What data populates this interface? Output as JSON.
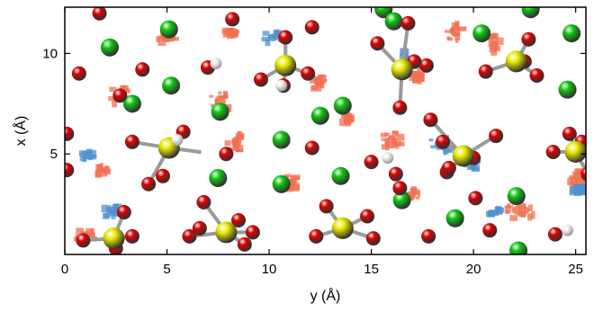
{
  "chart_data": {
    "type": "scatter",
    "title": "",
    "xlabel": "y (Å)",
    "ylabel": "x (Å)",
    "xlim": [
      0,
      25.5
    ],
    "ylim": [
      0,
      12.3
    ],
    "x_ticks": [
      0,
      5,
      10,
      15,
      20,
      25
    ],
    "y_ticks": [
      5,
      10
    ],
    "grid": false,
    "legend": "none",
    "colors": {
      "oxygen": "#e00000",
      "sulfur": "#e8e800",
      "chlorine": "#10c810",
      "hydrogen": "#f0f0f0",
      "positive_density": "#f07050",
      "negative_density": "#5090d0",
      "bond": "#9a9a9a"
    },
    "series": [
      {
        "name": "Cl",
        "color": "#10c810",
        "points": [
          [
            2.2,
            10.3
          ],
          [
            5.1,
            11.2
          ],
          [
            5.2,
            8.4
          ],
          [
            7.6,
            7.1
          ],
          [
            3.3,
            7.5
          ],
          [
            7.5,
            3.8
          ],
          [
            10.6,
            3.5
          ],
          [
            10.6,
            5.7
          ],
          [
            12.5,
            6.9
          ],
          [
            13.6,
            7.4
          ],
          [
            13.5,
            3.9
          ],
          [
            15.6,
            12.2
          ],
          [
            16.1,
            11.6
          ],
          [
            16.5,
            2.7
          ],
          [
            19.1,
            1.8
          ],
          [
            20.4,
            11.0
          ],
          [
            22.1,
            2.9
          ],
          [
            22.2,
            0.2
          ],
          [
            22.8,
            12.2
          ],
          [
            24.8,
            11.0
          ],
          [
            24.6,
            8.2
          ]
        ]
      },
      {
        "name": "O",
        "color": "#e00000",
        "points": [
          [
            0.7,
            9.0
          ],
          [
            3.8,
            9.2
          ],
          [
            0.1,
            6.0
          ],
          [
            2.7,
            7.9
          ],
          [
            0.1,
            4.2
          ],
          [
            4.8,
            3.9
          ],
          [
            1.7,
            12.0
          ],
          [
            8.2,
            11.7
          ],
          [
            7.0,
            9.3
          ],
          [
            12.1,
            11.3
          ],
          [
            10.8,
            10.8
          ],
          [
            9.6,
            8.7
          ],
          [
            11.9,
            9.0
          ],
          [
            10.7,
            8.4
          ],
          [
            7.9,
            5.0
          ],
          [
            12.1,
            5.3
          ],
          [
            15.0,
            4.6
          ],
          [
            16.4,
            3.3
          ],
          [
            16.2,
            4.0
          ],
          [
            20.1,
            2.8
          ],
          [
            3.3,
            5.6
          ],
          [
            4.1,
            3.5
          ],
          [
            5.8,
            6.1
          ],
          [
            6.6,
            1.3
          ],
          [
            6.1,
            0.9
          ],
          [
            6.8,
            2.6
          ],
          [
            9.2,
            1.1
          ],
          [
            8.5,
            1.7
          ],
          [
            8.8,
            0.5
          ],
          [
            12.8,
            2.4
          ],
          [
            14.8,
            1.9
          ],
          [
            12.3,
            0.9
          ],
          [
            15.1,
            0.8
          ],
          [
            15.3,
            10.5
          ],
          [
            16.8,
            11.5
          ],
          [
            16.4,
            7.3
          ],
          [
            17.7,
            9.4
          ],
          [
            17.1,
            9.6
          ],
          [
            17.9,
            6.7
          ],
          [
            18.5,
            5.6
          ],
          [
            18.7,
            4.1
          ],
          [
            20.0,
            4.8
          ],
          [
            21.1,
            5.9
          ],
          [
            20.6,
            9.1
          ],
          [
            22.7,
            10.7
          ],
          [
            23.1,
            8.9
          ],
          [
            22.5,
            9.6
          ],
          [
            18.8,
            4.3
          ],
          [
            0.9,
            0.7
          ],
          [
            2.5,
            0.3
          ],
          [
            3.3,
            0.9
          ],
          [
            2.9,
            2.1
          ],
          [
            17.8,
            0.9
          ],
          [
            20.8,
            1.2
          ],
          [
            24.0,
            1.0
          ],
          [
            23.9,
            5.1
          ],
          [
            24.7,
            6.0
          ],
          [
            25.6,
            4.0
          ],
          [
            25.3,
            5.6
          ]
        ]
      },
      {
        "name": "S",
        "color": "#e8e800",
        "points": [
          [
            2.4,
            0.8
          ],
          [
            5.1,
            5.3
          ],
          [
            7.9,
            1.1
          ],
          [
            10.8,
            9.4
          ],
          [
            13.6,
            1.3
          ],
          [
            16.5,
            9.2
          ],
          [
            19.5,
            4.9
          ],
          [
            22.1,
            9.6
          ],
          [
            25.0,
            5.1
          ]
        ]
      },
      {
        "name": "H",
        "color": "#f0f0f0",
        "points": [
          [
            7.4,
            9.5
          ],
          [
            10.6,
            8.4
          ],
          [
            15.8,
            4.8
          ],
          [
            24.6,
            1.2
          ],
          [
            5.5,
            5.7
          ]
        ]
      },
      {
        "name": "",
        "color": "#f07050",
        "blobs": [
          [
            2.7,
            7.9,
            0.45,
            0.55
          ],
          [
            5.0,
            10.8,
            0.55,
            0.45
          ],
          [
            7.6,
            7.6,
            0.5,
            0.6
          ],
          [
            8.4,
            5.6,
            0.45,
            0.5
          ],
          [
            11.0,
            3.5,
            0.55,
            0.45
          ],
          [
            12.4,
            8.6,
            0.4,
            0.4
          ],
          [
            16.0,
            5.6,
            0.5,
            0.6
          ],
          [
            16.9,
            2.9,
            0.45,
            0.45
          ],
          [
            19.1,
            11.1,
            0.45,
            0.5
          ],
          [
            21.0,
            10.4,
            0.35,
            0.5
          ],
          [
            22.3,
            2.2,
            0.8,
            0.45
          ],
          [
            25.2,
            3.7,
            0.5,
            0.45
          ],
          [
            1.0,
            0.9,
            0.45,
            0.3
          ],
          [
            17.3,
            8.9,
            0.3,
            0.3
          ],
          [
            8.1,
            11.0,
            0.3,
            0.25
          ],
          [
            13.8,
            6.7,
            0.3,
            0.3
          ],
          [
            1.8,
            4.2,
            0.35,
            0.25
          ]
        ]
      },
      {
        "name": "",
        "color": "#5090d0",
        "blobs": [
          [
            10.2,
            10.8,
            0.45,
            0.35
          ],
          [
            16.7,
            9.6,
            0.5,
            0.5
          ],
          [
            18.4,
            5.5,
            0.55,
            0.45
          ],
          [
            20.0,
            4.5,
            0.35,
            0.3
          ],
          [
            25.1,
            3.2,
            0.4,
            0.25
          ],
          [
            2.3,
            2.2,
            0.55,
            0.35
          ],
          [
            1.1,
            4.9,
            0.3,
            0.3
          ],
          [
            21.1,
            2.1,
            0.3,
            0.25
          ]
        ]
      }
    ],
    "bonds": [
      [
        2.4,
        0.8,
        0.9,
        0.7
      ],
      [
        2.4,
        0.8,
        2.5,
        0.3
      ],
      [
        2.4,
        0.8,
        3.3,
        0.9
      ],
      [
        2.4,
        0.8,
        2.9,
        2.1
      ],
      [
        5.1,
        5.3,
        3.3,
        5.6
      ],
      [
        5.1,
        5.3,
        4.1,
        3.5
      ],
      [
        5.1,
        5.3,
        5.8,
        6.1
      ],
      [
        5.1,
        5.3,
        6.6,
        5.1
      ],
      [
        7.9,
        1.1,
        6.1,
        0.9
      ],
      [
        7.9,
        1.1,
        6.8,
        2.6
      ],
      [
        7.9,
        1.1,
        9.2,
        1.1
      ],
      [
        7.9,
        1.1,
        8.5,
        1.7
      ],
      [
        7.9,
        1.1,
        8.8,
        0.5
      ],
      [
        10.8,
        9.4,
        9.6,
        8.7
      ],
      [
        10.8,
        9.4,
        11.9,
        9.0
      ],
      [
        10.8,
        9.4,
        10.8,
        10.8
      ],
      [
        10.8,
        9.4,
        10.7,
        8.4
      ],
      [
        13.6,
        1.3,
        12.8,
        2.4
      ],
      [
        13.6,
        1.3,
        14.8,
        1.9
      ],
      [
        13.6,
        1.3,
        12.3,
        0.9
      ],
      [
        13.6,
        1.3,
        15.1,
        0.8
      ],
      [
        16.5,
        9.2,
        15.3,
        10.5
      ],
      [
        16.5,
        9.2,
        16.4,
        7.3
      ],
      [
        16.5,
        9.2,
        17.7,
        9.4
      ],
      [
        16.5,
        9.2,
        16.8,
        11.5
      ],
      [
        19.5,
        4.9,
        17.9,
        6.7
      ],
      [
        19.5,
        4.9,
        18.5,
        5.6
      ],
      [
        19.5,
        4.9,
        18.7,
        4.1
      ],
      [
        19.5,
        4.9,
        20.0,
        4.8
      ],
      [
        19.5,
        4.9,
        21.1,
        5.9
      ],
      [
        22.1,
        9.6,
        20.6,
        9.1
      ],
      [
        22.1,
        9.6,
        22.7,
        10.7
      ],
      [
        22.1,
        9.6,
        23.1,
        8.9
      ],
      [
        22.1,
        9.6,
        22.5,
        9.6
      ],
      [
        25.0,
        5.1,
        23.9,
        5.1
      ],
      [
        25.0,
        5.1,
        24.7,
        6.0
      ],
      [
        25.0,
        5.1,
        25.6,
        4.0
      ]
    ]
  }
}
